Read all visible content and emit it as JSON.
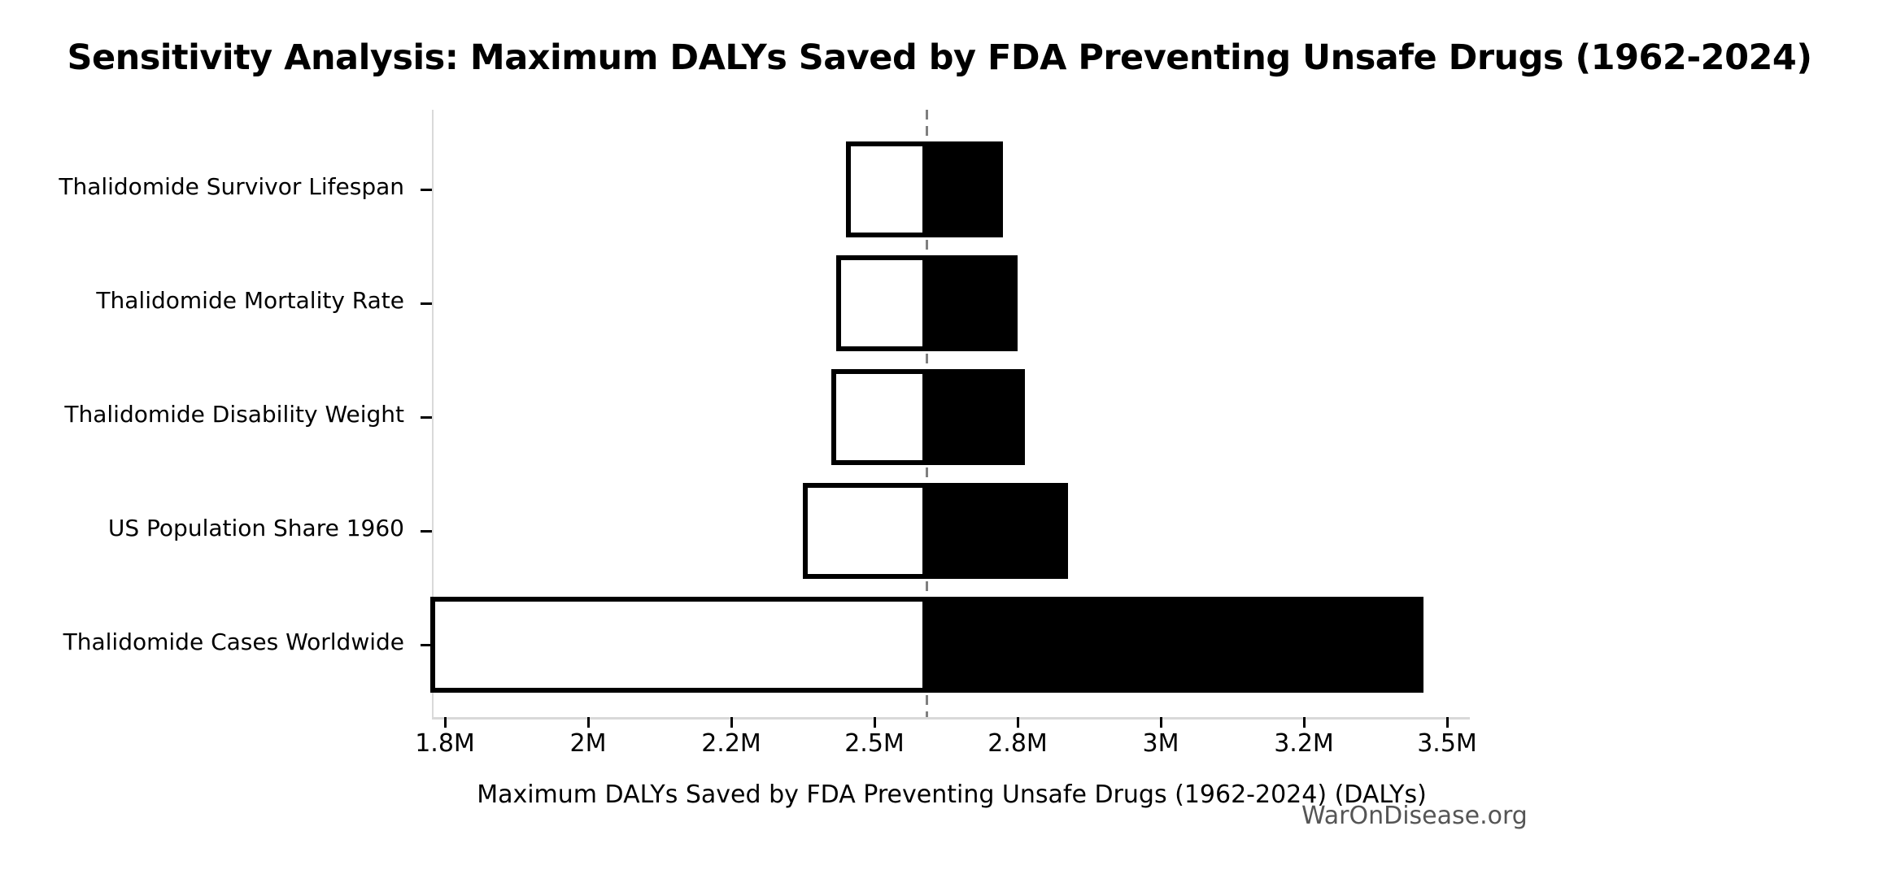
{
  "title": "Sensitivity Analysis: Maximum DALYs Saved by FDA Preventing Unsafe Drugs (1962-2024)",
  "watermark": "WarOnDisease.org",
  "chart_data": {
    "type": "bar",
    "subtype": "tornado-sensitivity",
    "orientation": "horizontal",
    "title": "Sensitivity Analysis: Maximum DALYs Saved by FDA Preventing Unsafe Drugs (1962-2024)",
    "xlabel": "Maximum DALYs Saved by FDA Preventing Unsafe Drugs (1962-2024) (DALYs)",
    "ylabel": "",
    "grid": "off",
    "legend": "none",
    "x_ticks": [
      {
        "label": "1.8M",
        "value": 1800000
      },
      {
        "label": "2M",
        "value": 2000000
      },
      {
        "label": "2.2M",
        "value": 2200000
      },
      {
        "label": "2.5M",
        "value": 2500000
      },
      {
        "label": "2.8M",
        "value": 2800000
      },
      {
        "label": "3M",
        "value": 3000000
      },
      {
        "label": "3.2M",
        "value": 3200000
      },
      {
        "label": "3.5M",
        "value": 3500000
      }
    ],
    "baseline": {
      "value": 2610000,
      "line_style": "dashed",
      "color": "#7f7f7f"
    },
    "categories": [
      "Thalidomide Survivor Lifespan",
      "Thalidomide Mortality Rate",
      "Thalidomide Disability Weight",
      "US Population Share 1960",
      "Thalidomide Cases Worldwide"
    ],
    "series": [
      {
        "name": "low_bound",
        "fill": "#ffffff",
        "edge": "#000000",
        "values": [
          2440000,
          2420000,
          2410000,
          2350000,
          1780000
        ]
      },
      {
        "name": "high_bound",
        "fill": "#000000",
        "edge": "#000000",
        "values": [
          2770000,
          2800000,
          2810000,
          2870000,
          3450000
        ]
      }
    ]
  },
  "colors": {
    "background": "#ffffff",
    "text": "#000000",
    "bar_low_fill": "#ffffff",
    "bar_high_fill": "#000000",
    "bar_edge": "#000000",
    "baseline_line": "#7f7f7f",
    "axis_line": "#d9d9d9",
    "tick_mark": "#000000",
    "watermark": "#555555"
  }
}
